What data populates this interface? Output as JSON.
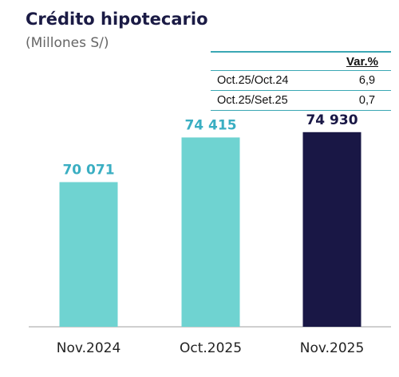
{
  "chart_data": {
    "type": "bar",
    "title": "Crédito hipotecario",
    "subtitle": "(Millones S/)",
    "categories": [
      "Nov.2024",
      "Oct.2025",
      "Nov.2025"
    ],
    "values": [
      70071,
      74415,
      74930
    ],
    "value_labels": [
      "70 071",
      "74 415",
      "74 930"
    ],
    "ylim": [
      56000,
      76000
    ],
    "colors": [
      "#6fd3d1",
      "#6fd3d1",
      "#191745"
    ],
    "label_colors": [
      "#3aaec2",
      "#3aaec2",
      "#191745"
    ],
    "grid": false,
    "legend": "none"
  },
  "variation_table": {
    "header": "Var.%",
    "rows": [
      {
        "label": "Oct.25/Oct.24",
        "value": "6,9"
      },
      {
        "label": "Oct.25/Set.25",
        "value": "0,7"
      }
    ]
  }
}
